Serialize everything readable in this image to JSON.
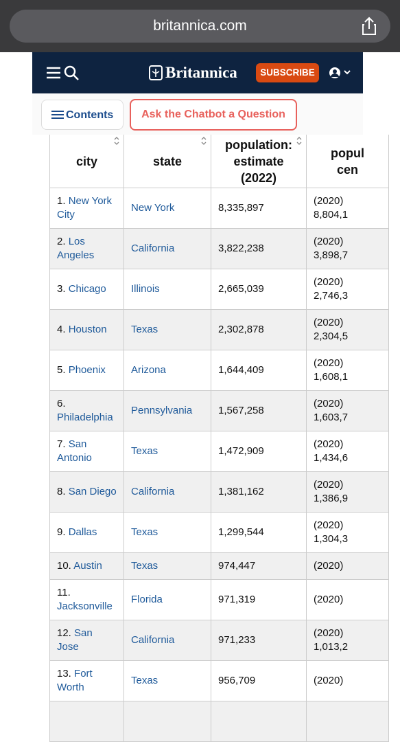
{
  "browser": {
    "url": "britannica.com"
  },
  "header": {
    "logo": "Britannica",
    "subscribe": "SUBSCRIBE"
  },
  "toolbar": {
    "contents": "Contents",
    "chatbot": "Ask the Chatbot a Question"
  },
  "table": {
    "columns": [
      [
        "city"
      ],
      [
        "state"
      ],
      [
        "population:",
        "estimate",
        "(2022)"
      ],
      [
        "popul",
        "cen"
      ]
    ],
    "rows": [
      {
        "rank": "1.",
        "city": "New York City",
        "state": "New York",
        "estimate": "8,335,897",
        "census": [
          "(2020)",
          "8,804,1"
        ]
      },
      {
        "rank": "2.",
        "city": "Los Angeles",
        "state": "California",
        "estimate": "3,822,238",
        "census": [
          "(2020)",
          "3,898,7"
        ]
      },
      {
        "rank": "3.",
        "city": "Chicago",
        "state": "Illinois",
        "estimate": "2,665,039",
        "census": [
          "(2020)",
          "2,746,3"
        ]
      },
      {
        "rank": "4.",
        "city": "Houston",
        "state": "Texas",
        "estimate": "2,302,878",
        "census": [
          "(2020)",
          "2,304,5"
        ]
      },
      {
        "rank": "5.",
        "city": "Phoenix",
        "state": "Arizona",
        "estimate": "1,644,409",
        "census": [
          "(2020)",
          "1,608,1"
        ]
      },
      {
        "rank": "6.",
        "city": "Philadelphia",
        "state": "Pennsylvania",
        "estimate": "1,567,258",
        "census": [
          "(2020)",
          "1,603,7"
        ]
      },
      {
        "rank": "7.",
        "city": "San Antonio",
        "state": "Texas",
        "estimate": "1,472,909",
        "census": [
          "(2020)",
          "1,434,6"
        ]
      },
      {
        "rank": "8.",
        "city": "San Diego",
        "state": "California",
        "estimate": "1,381,162",
        "census": [
          "(2020)",
          "1,386,9"
        ]
      },
      {
        "rank": "9.",
        "city": "Dallas",
        "state": "Texas",
        "estimate": "1,299,544",
        "census": [
          "(2020)",
          "1,304,3"
        ]
      },
      {
        "rank": "10.",
        "city": "Austin",
        "state": "Texas",
        "estimate": "974,447",
        "census": [
          "(2020)"
        ]
      },
      {
        "rank": "11.",
        "city": "Jacksonville",
        "state": "Florida",
        "estimate": "971,319",
        "census": [
          "(2020)"
        ]
      },
      {
        "rank": "12.",
        "city": "San Jose",
        "state": "California",
        "estimate": "971,233",
        "census": [
          "(2020)",
          "1,013,2"
        ]
      },
      {
        "rank": "13.",
        "city": "Fort Worth",
        "state": "Texas",
        "estimate": "956,709",
        "census": [
          "(2020)"
        ]
      }
    ]
  }
}
